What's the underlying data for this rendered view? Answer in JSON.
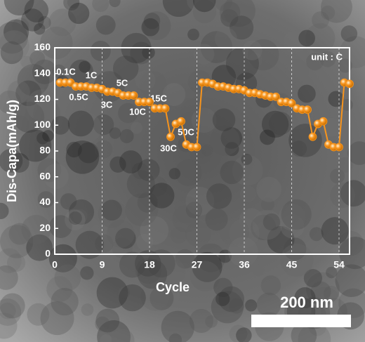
{
  "chart_data": {
    "type": "line",
    "x_label": "Cycle",
    "y_label": "Dis-Capa(mAh/g)",
    "unit_note": "unit : C",
    "annotations": [
      "0.1C",
      "0.5C",
      "1C",
      "3C",
      "5C",
      "10C",
      "15C",
      "30C",
      "50C"
    ],
    "scale_bar": "200 nm",
    "x": [
      1,
      2,
      3,
      4,
      5,
      6,
      7,
      8,
      9,
      10,
      11,
      12,
      13,
      14,
      15,
      16,
      17,
      18,
      19,
      20,
      21,
      22,
      23,
      24,
      25,
      26,
      27,
      28,
      29,
      30,
      31,
      32,
      33,
      34,
      35,
      36,
      37,
      38,
      39,
      40,
      41,
      42,
      43,
      44,
      45,
      46,
      47,
      48,
      49,
      50,
      51,
      52,
      53,
      54,
      55,
      56
    ],
    "series": [
      {
        "name": "Dis-Capa",
        "color": "#f7941d",
        "values": [
          133,
          133,
          133,
          130,
          130,
          130,
          129,
          129,
          128,
          126,
          126,
          125,
          123,
          123,
          123,
          118,
          118,
          118,
          113,
          113,
          113,
          91,
          101,
          103,
          85,
          83,
          83,
          133,
          133,
          132,
          130,
          130,
          129,
          128,
          128,
          127,
          125,
          125,
          124,
          123,
          122,
          122,
          118,
          118,
          117,
          113,
          112,
          112,
          91,
          101,
          103,
          85,
          83,
          83,
          133,
          132
        ]
      }
    ],
    "xlim": [
      0,
      56
    ],
    "xticks": [
      0,
      9,
      18,
      27,
      36,
      45,
      54
    ],
    "ylim": [
      0,
      160
    ],
    "yticks": [
      0,
      20,
      40,
      60,
      80,
      100,
      120,
      140,
      160
    ],
    "grid": true
  }
}
